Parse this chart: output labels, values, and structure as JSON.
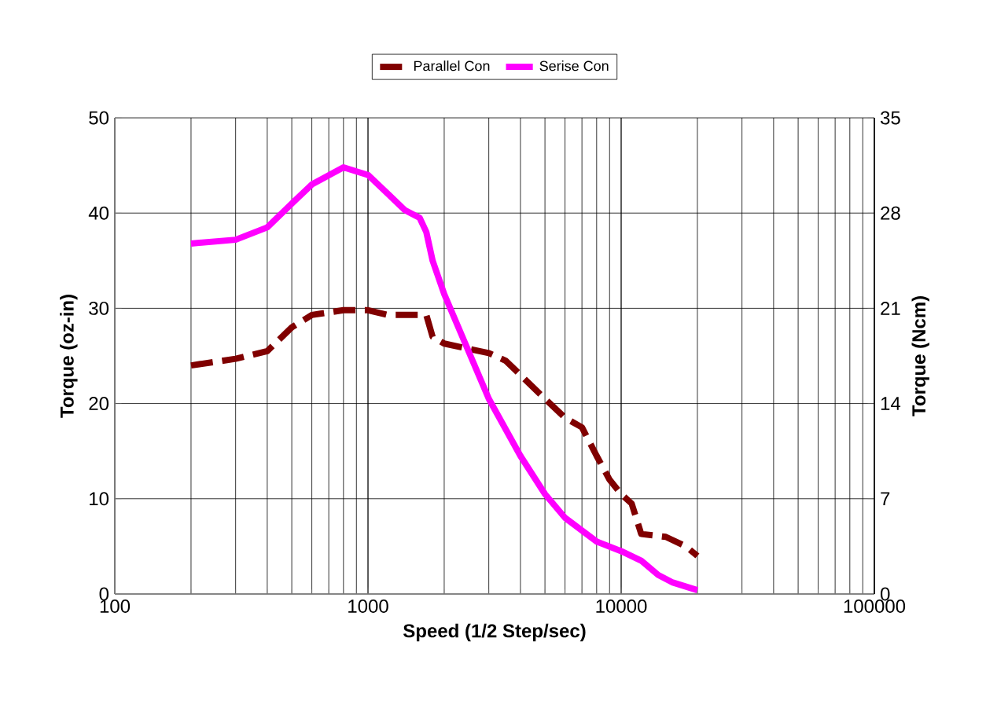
{
  "chart_data": {
    "type": "line",
    "xlabel": "Speed (1/2 Step/sec)",
    "ylabel": "Torque (oz-in)",
    "y2label": "Torque (Ncm)",
    "log": "x",
    "grid": true,
    "legend": "top",
    "marker": "none",
    "xlim": [
      100,
      100000
    ],
    "xticks": [
      100,
      1000,
      10000,
      100000
    ],
    "ylim": [
      0,
      50
    ],
    "yticks": [
      0,
      10,
      20,
      30,
      40,
      50
    ],
    "y2lim": [
      0,
      35
    ],
    "y2ticks": [
      0,
      7,
      14,
      21,
      28,
      35
    ],
    "series": [
      {
        "name": "Parallel Con",
        "color": "#800000",
        "line_style": "dashed",
        "x": [
          200,
          300,
          400,
          500,
          600,
          800,
          1000,
          1200,
          1700,
          1800,
          2000,
          3000,
          3500,
          4000,
          5000,
          6000,
          7000,
          8000,
          9000,
          10000,
          11000,
          12000,
          15000,
          18000,
          20000
        ],
        "values": [
          24,
          24.7,
          25.5,
          28,
          29.3,
          29.8,
          29.8,
          29.3,
          29.3,
          27,
          26.3,
          25.3,
          24.5,
          23,
          20.5,
          18.5,
          17.5,
          14.5,
          12,
          10.5,
          9.5,
          6.3,
          6,
          5,
          4
        ]
      },
      {
        "name": "Serise Con",
        "color": "#ff00ff",
        "line_style": "solid",
        "x": [
          200,
          300,
          400,
          500,
          600,
          800,
          1000,
          1200,
          1400,
          1600,
          1700,
          1800,
          2000,
          3000,
          4000,
          5000,
          6000,
          8000,
          10000,
          12000,
          14000,
          16000,
          20000
        ],
        "values": [
          36.8,
          37.2,
          38.5,
          41,
          43,
          44.8,
          44,
          42,
          40.3,
          39.5,
          38,
          35,
          31.5,
          20.5,
          14.5,
          10.5,
          8,
          5.5,
          4.5,
          3.5,
          2,
          1.2,
          0.4
        ]
      }
    ]
  }
}
